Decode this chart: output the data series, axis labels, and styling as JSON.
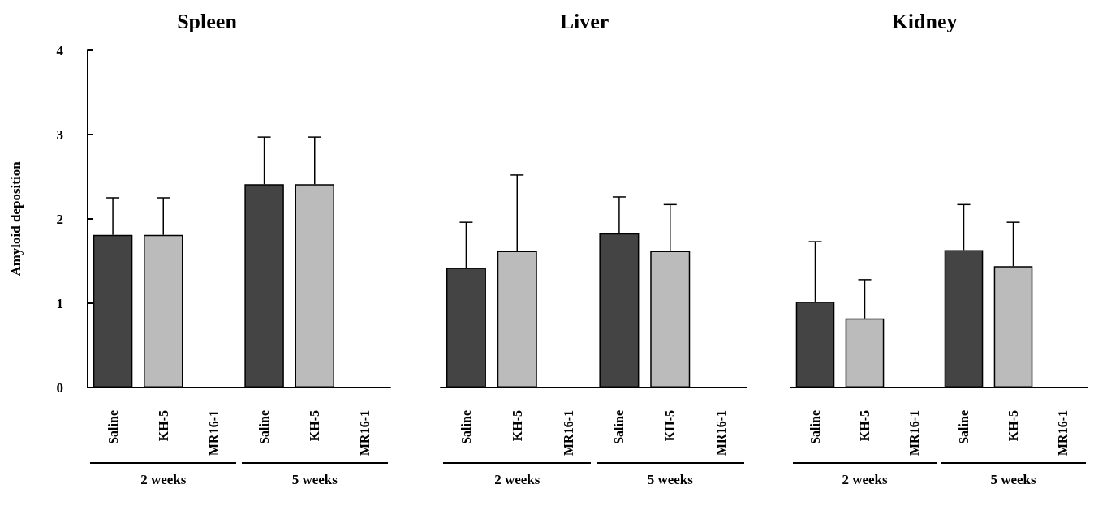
{
  "chart_data": [
    {
      "type": "bar",
      "title": "Spleen",
      "ylabel": "Amyloid deposition",
      "categories": [
        "Saline",
        "KH-5",
        "MR16-1",
        "Saline",
        "KH-5",
        "MR16-1"
      ],
      "values": [
        1.81,
        1.81,
        0,
        2.41,
        2.41,
        0
      ],
      "colors": [
        "#444444",
        "#bbbbbb",
        "#000000",
        "#444444",
        "#bbbbbb",
        "#000000"
      ],
      "errors": [
        [
          1.81,
          2.25
        ],
        [
          1.81,
          2.25
        ],
        null,
        [
          2.41,
          2.97
        ],
        [
          2.41,
          2.97
        ],
        null
      ],
      "annotations": [
        "2 weeks",
        "5 weeks"
      ],
      "ylim": [
        0,
        4
      ],
      "yticks": [
        0,
        1,
        2,
        3,
        4
      ],
      "grid": false
    },
    {
      "type": "bar",
      "title": "Liver",
      "categories": [
        "Saline",
        "KH-5",
        "MR16-1",
        "Saline",
        "KH-5",
        "MR16-1"
      ],
      "values": [
        1.42,
        1.62,
        0,
        1.83,
        1.62,
        0
      ],
      "colors": [
        "#444444",
        "#bbbbbb",
        "#000000",
        "#444444",
        "#bbbbbb",
        "#000000"
      ],
      "errors": [
        [
          1.42,
          1.96
        ],
        [
          1.62,
          2.52
        ],
        null,
        [
          1.83,
          2.26
        ],
        [
          1.62,
          2.17
        ],
        null
      ],
      "annotations": [
        "2 weeks",
        "5 weeks"
      ],
      "ylim": [
        0,
        4
      ],
      "yticks": [
        0,
        1,
        2,
        3,
        4
      ],
      "tick_labels": "x",
      "grid": false
    },
    {
      "type": "bar",
      "title": "Kidney",
      "categories": [
        "Saline",
        "KH-5",
        "MR16-1",
        "Saline",
        "KH-5",
        "MR16-1"
      ],
      "values": [
        1.02,
        0.82,
        0,
        1.63,
        1.44,
        0
      ],
      "colors": [
        "#444444",
        "#bbbbbb",
        "#000000",
        "#444444",
        "#bbbbbb",
        "#000000"
      ],
      "errors": [
        [
          1.02,
          1.73
        ],
        [
          0.82,
          1.28
        ],
        null,
        [
          1.63,
          2.17
        ],
        [
          1.44,
          1.96
        ],
        null
      ],
      "annotations": [
        "2 weeks",
        "5 weeks"
      ],
      "ylim": [
        0,
        4
      ],
      "yticks": [
        0,
        1,
        2,
        3,
        4
      ],
      "tick_labels": "x",
      "grid": false
    }
  ]
}
